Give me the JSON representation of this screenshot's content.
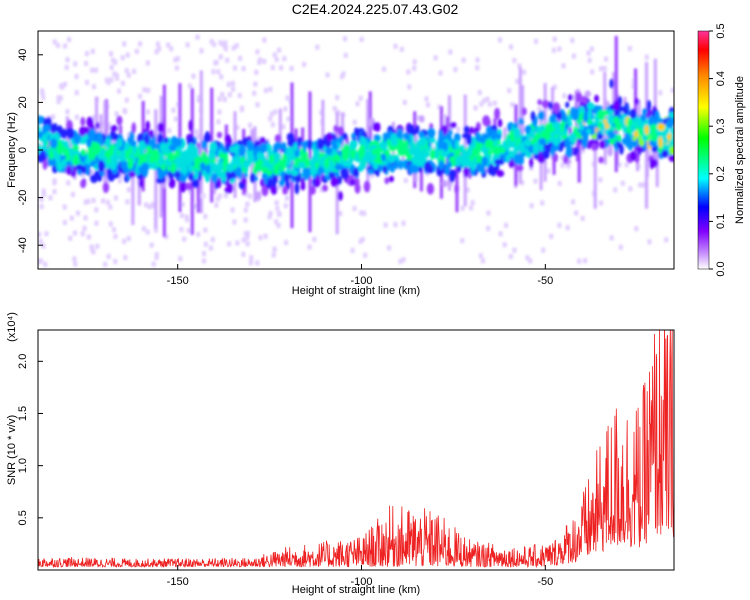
{
  "title": "C2E4.2024.225.07.43.G02",
  "chart_data": [
    {
      "type": "heatmap",
      "xlabel": "Height of straight line (km)",
      "ylabel": "Frequency (Hz)",
      "xlim": [
        -188,
        -15
      ],
      "ylim": [
        -50,
        50
      ],
      "xticks": [
        -150,
        -100,
        -50
      ],
      "yticks": [
        -40,
        -20,
        0,
        20,
        40
      ],
      "colorbar": {
        "label": "Normalized spectral amplitude",
        "range": [
          0,
          0.5
        ],
        "ticks": [
          "0.0",
          "0.1",
          "0.2",
          "0.3",
          "0.4",
          "0.5"
        ]
      },
      "ridge_center_hz": [
        {
          "x": -185,
          "y": 0
        },
        {
          "x": -160,
          "y": -2
        },
        {
          "x": -130,
          "y": -6
        },
        {
          "x": -110,
          "y": -4
        },
        {
          "x": -90,
          "y": 0
        },
        {
          "x": -70,
          "y": -2
        },
        {
          "x": -55,
          "y": 5
        },
        {
          "x": -35,
          "y": 12
        },
        {
          "x": -15,
          "y": 5
        }
      ]
    },
    {
      "type": "line",
      "xlabel": "Height of straight line (km)",
      "ylabel": "SNR (10 * v/v)",
      "multiplier": "(x10⁴)",
      "xlim": [
        -188,
        -15
      ],
      "ylim": [
        0,
        2.3
      ],
      "xticks": [
        -150,
        -100,
        -50
      ],
      "yticks": [
        "0.5",
        "1.0",
        "1.5",
        "2.0"
      ],
      "series_color": "#ee2222",
      "envelope": [
        {
          "x": -188,
          "y": 0.1
        },
        {
          "x": -160,
          "y": 0.08
        },
        {
          "x": -130,
          "y": 0.09
        },
        {
          "x": -120,
          "y": 0.2
        },
        {
          "x": -100,
          "y": 0.3
        },
        {
          "x": -92,
          "y": 0.6
        },
        {
          "x": -80,
          "y": 0.55
        },
        {
          "x": -70,
          "y": 0.25
        },
        {
          "x": -55,
          "y": 0.2
        },
        {
          "x": -48,
          "y": 0.25
        },
        {
          "x": -42,
          "y": 0.5
        },
        {
          "x": -38,
          "y": 0.8
        },
        {
          "x": -34,
          "y": 1.2
        },
        {
          "x": -30,
          "y": 1.5
        },
        {
          "x": -24,
          "y": 1.4
        },
        {
          "x": -20,
          "y": 2.2
        },
        {
          "x": -15,
          "y": 2.1
        }
      ]
    }
  ]
}
